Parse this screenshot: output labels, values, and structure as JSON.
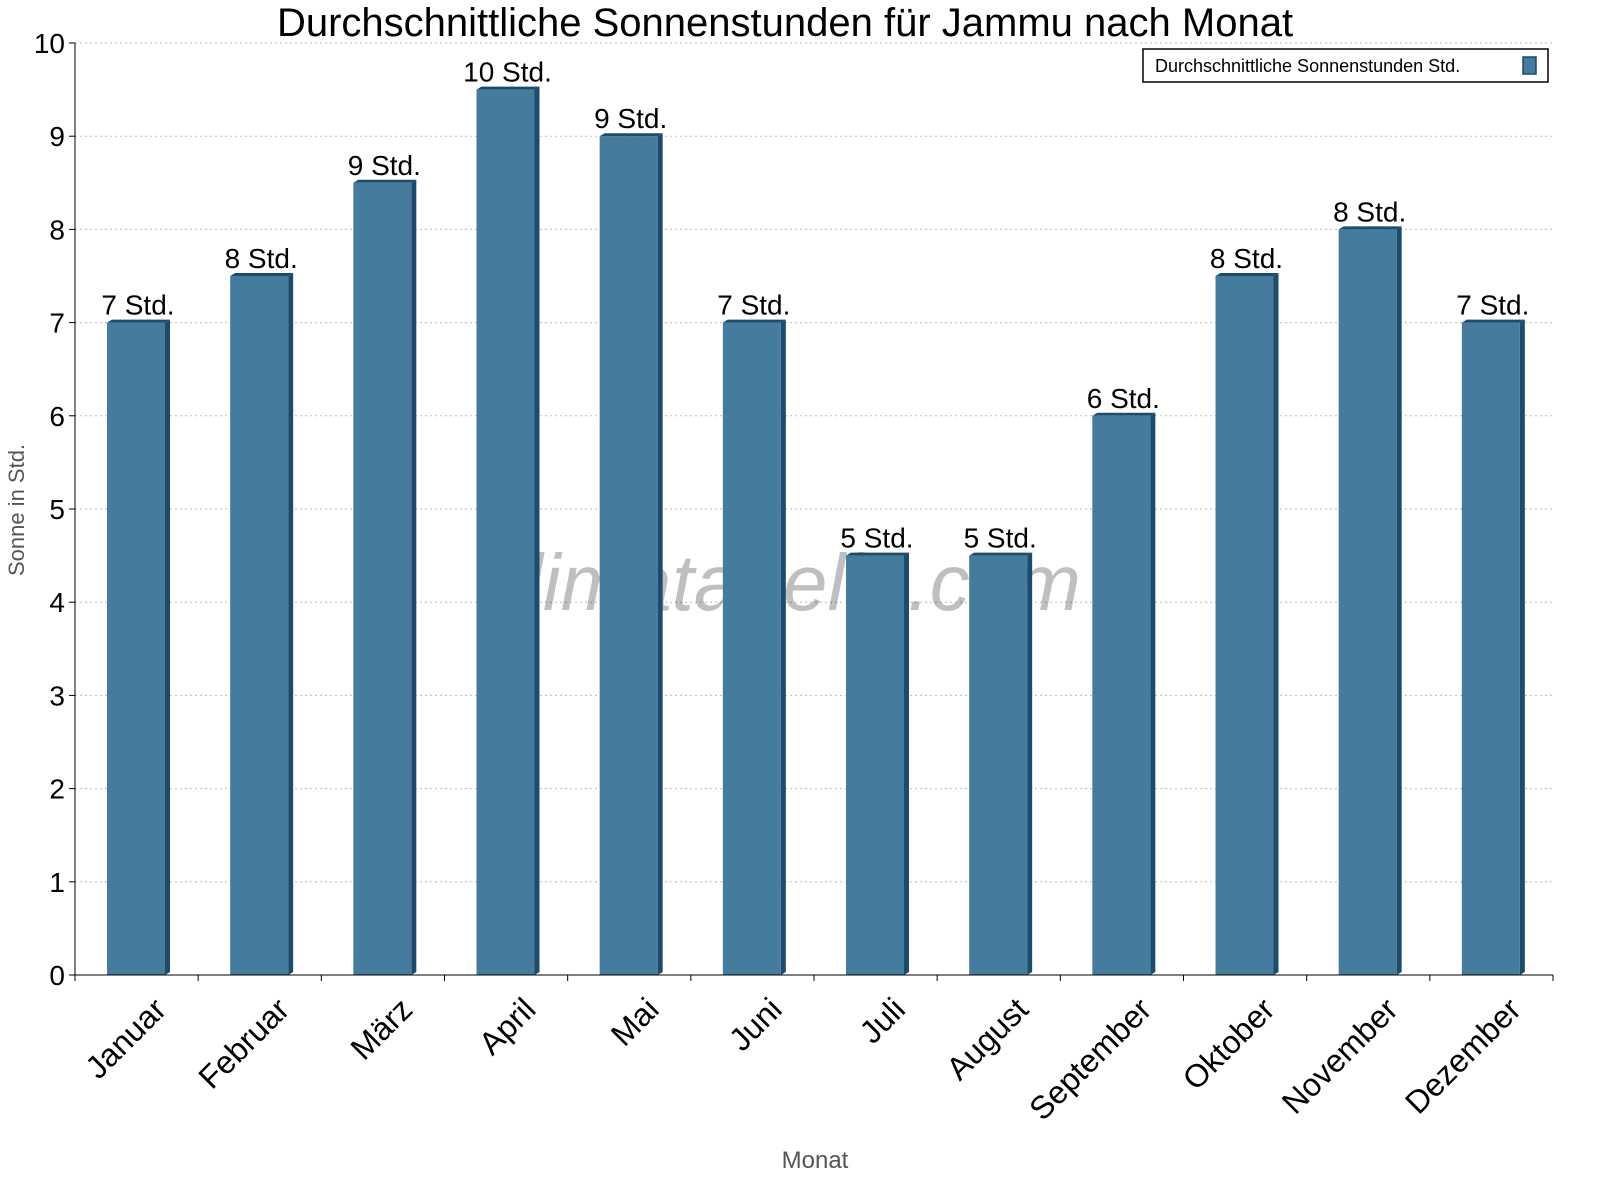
{
  "chart_data": {
    "type": "bar",
    "title": "Durchschnittliche Sonnenstunden für Jammu nach Monat",
    "xlabel": "Monat",
    "ylabel": "Sonne in Std.",
    "ylim": [
      0,
      10
    ],
    "yticks": [
      "0",
      "1",
      "2",
      "3",
      "4",
      "5",
      "6",
      "7",
      "8",
      "9",
      "10"
    ],
    "grid": true,
    "legend_position": "top-right",
    "watermark": "klimatabelle.com",
    "categories": [
      "Januar",
      "Februar",
      "März",
      "April",
      "Mai",
      "Juni",
      "Juli",
      "August",
      "September",
      "Oktober",
      "November",
      "Dezember"
    ],
    "series": [
      {
        "name": "Durchschnittliche Sonnenstunden Std.",
        "color": "#457b9d",
        "values": [
          7,
          7.5,
          8.5,
          9.5,
          9,
          7,
          4.5,
          4.5,
          6,
          7.5,
          8,
          7
        ],
        "data_labels": [
          "7 Std.",
          "8 Std.",
          "9 Std.",
          "10 Std.",
          "9 Std.",
          "7 Std.",
          "5 Std.",
          "5 Std.",
          "6 Std.",
          "8 Std.",
          "8 Std.",
          "7 Std."
        ]
      }
    ]
  }
}
